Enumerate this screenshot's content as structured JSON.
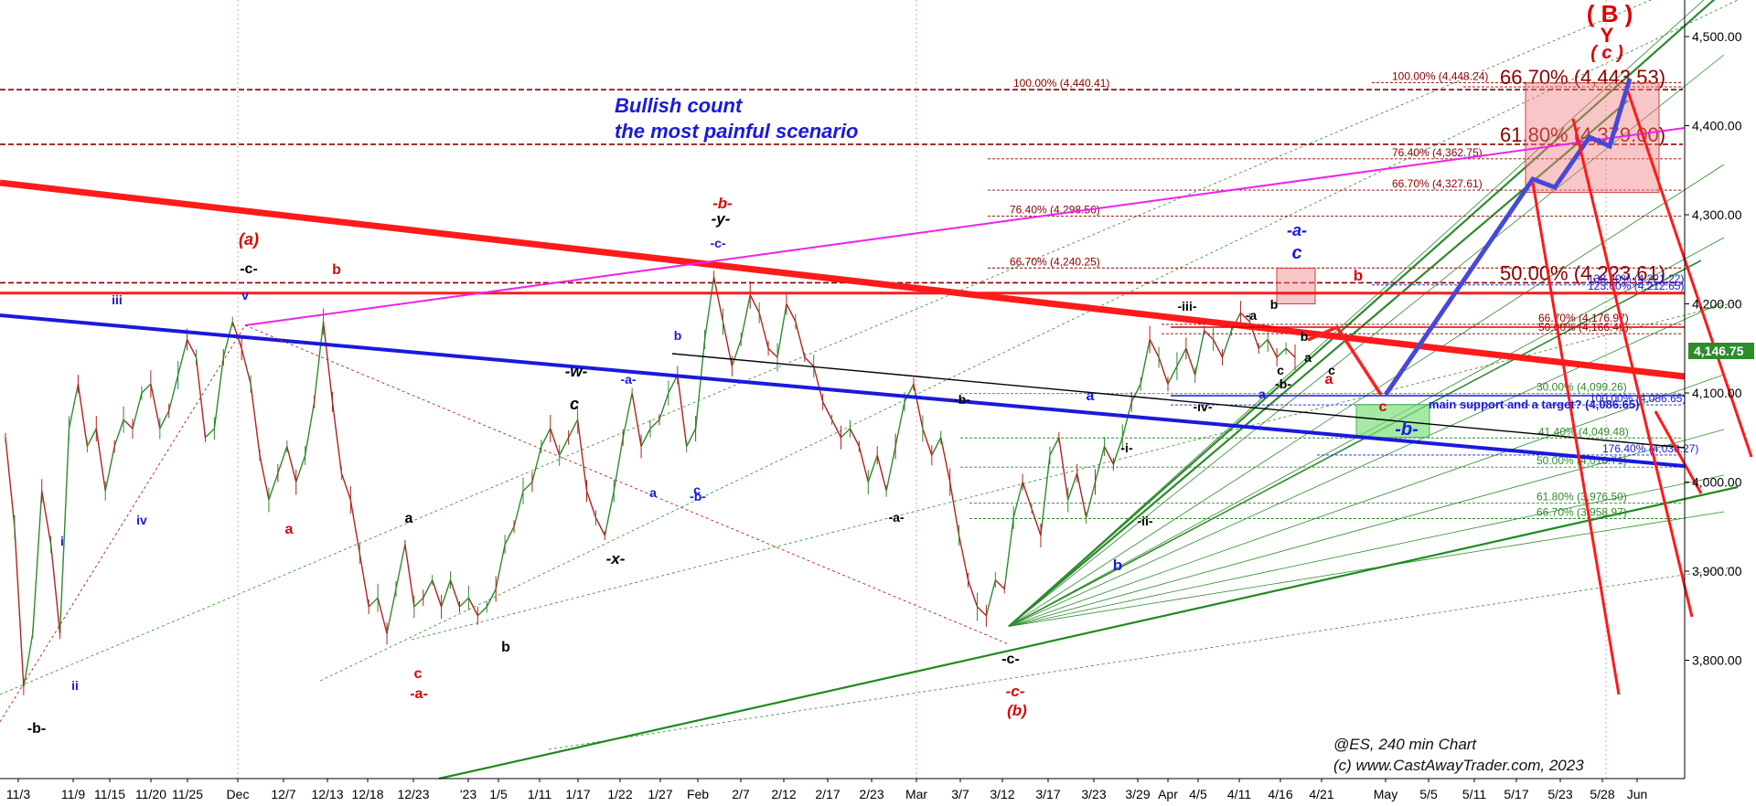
{
  "chart_data": {
    "type": "candlestick",
    "title": "Bullish count",
    "subtitle": "the most painful scenario",
    "symbol_label": "@ES, 240 min Chart",
    "copyright": "(c) www.CastAwayTrader.com, 2023",
    "last_price_label": "4,146.75",
    "last_price": 4146.75,
    "ylim": [
      3710,
      4560
    ],
    "y_ticks": [
      {
        "value": 4500,
        "label": "4,500.00"
      },
      {
        "value": 4400,
        "label": "4,400.00"
      },
      {
        "value": 4300,
        "label": "4,300.00"
      },
      {
        "value": 4200,
        "label": "4,200.00"
      },
      {
        "value": 4100,
        "label": "4,100.00"
      },
      {
        "value": 4000,
        "label": "4,000.00"
      },
      {
        "value": 3900,
        "label": "3,900.00"
      },
      {
        "value": 3800,
        "label": "3,800.00"
      }
    ],
    "x_ticks": [
      "11/3",
      "11/9",
      "11/15",
      "11/20",
      "11/25",
      "Dec",
      "12/7",
      "12/13",
      "12/18",
      "12/23",
      "'23",
      "1/5",
      "1/11",
      "1/17",
      "1/22",
      "1/27",
      "Feb",
      "2/7",
      "2/12",
      "2/17",
      "2/23",
      "Mar",
      "3/7",
      "3/12",
      "3/17",
      "3/23",
      "3/29",
      "Apr",
      "4/5",
      "4/11",
      "4/16",
      "4/21",
      "May",
      "5/5",
      "5/11",
      "5/17",
      "5/23",
      "5/28",
      "Jun"
    ],
    "price_path": [
      [
        0,
        4050
      ],
      [
        1,
        3950
      ],
      [
        2,
        3770
      ],
      [
        3,
        3830
      ],
      [
        4,
        3990
      ],
      [
        5,
        3930
      ],
      [
        6,
        3830
      ],
      [
        7,
        4060
      ],
      [
        8,
        4110
      ],
      [
        9,
        4040
      ],
      [
        10,
        4060
      ],
      [
        11,
        3990
      ],
      [
        12,
        4040
      ],
      [
        13,
        4070
      ],
      [
        14,
        4060
      ],
      [
        15,
        4100
      ],
      [
        16,
        4110
      ],
      [
        17,
        4060
      ],
      [
        18,
        4080
      ],
      [
        19,
        4120
      ],
      [
        20,
        4160
      ],
      [
        21,
        4140
      ],
      [
        22,
        4050
      ],
      [
        23,
        4060
      ],
      [
        24,
        4140
      ],
      [
        25,
        4180
      ],
      [
        26,
        4150
      ],
      [
        27,
        4110
      ],
      [
        28,
        4030
      ],
      [
        29,
        3980
      ],
      [
        30,
        4010
      ],
      [
        31,
        4040
      ],
      [
        32,
        4000
      ],
      [
        33,
        4030
      ],
      [
        34,
        4090
      ],
      [
        35,
        4180
      ],
      [
        36,
        4090
      ],
      [
        37,
        4010
      ],
      [
        38,
        3980
      ],
      [
        39,
        3920
      ],
      [
        40,
        3860
      ],
      [
        41,
        3870
      ],
      [
        42,
        3830
      ],
      [
        43,
        3880
      ],
      [
        44,
        3930
      ],
      [
        45,
        3860
      ],
      [
        46,
        3870
      ],
      [
        47,
        3890
      ],
      [
        48,
        3860
      ],
      [
        49,
        3890
      ],
      [
        50,
        3860
      ],
      [
        51,
        3870
      ],
      [
        52,
        3850
      ],
      [
        53,
        3860
      ],
      [
        54,
        3880
      ],
      [
        55,
        3930
      ],
      [
        56,
        3950
      ],
      [
        57,
        3990
      ],
      [
        58,
        4000
      ],
      [
        59,
        4040
      ],
      [
        60,
        4060
      ],
      [
        61,
        4030
      ],
      [
        62,
        4050
      ],
      [
        63,
        4070
      ],
      [
        64,
        3990
      ],
      [
        65,
        3960
      ],
      [
        66,
        3940
      ],
      [
        67,
        3990
      ],
      [
        68,
        4050
      ],
      [
        69,
        4100
      ],
      [
        70,
        4040
      ],
      [
        71,
        4060
      ],
      [
        72,
        4070
      ],
      [
        73,
        4100
      ],
      [
        74,
        4120
      ],
      [
        75,
        4040
      ],
      [
        76,
        4060
      ],
      [
        77,
        4160
      ],
      [
        78,
        4230
      ],
      [
        79,
        4180
      ],
      [
        80,
        4130
      ],
      [
        81,
        4160
      ],
      [
        82,
        4210
      ],
      [
        83,
        4190
      ],
      [
        84,
        4150
      ],
      [
        85,
        4140
      ],
      [
        86,
        4200
      ],
      [
        87,
        4180
      ],
      [
        88,
        4140
      ],
      [
        89,
        4130
      ],
      [
        90,
        4090
      ],
      [
        91,
        4070
      ],
      [
        92,
        4050
      ],
      [
        93,
        4060
      ],
      [
        94,
        4040
      ],
      [
        95,
        4000
      ],
      [
        96,
        4030
      ],
      [
        97,
        3990
      ],
      [
        98,
        4040
      ],
      [
        99,
        4090
      ],
      [
        100,
        4110
      ],
      [
        101,
        4060
      ],
      [
        102,
        4030
      ],
      [
        103,
        4050
      ],
      [
        104,
        4000
      ],
      [
        105,
        3940
      ],
      [
        106,
        3890
      ],
      [
        107,
        3860
      ],
      [
        108,
        3850
      ],
      [
        109,
        3890
      ],
      [
        110,
        3880
      ],
      [
        111,
        3960
      ],
      [
        112,
        4000
      ],
      [
        113,
        3970
      ],
      [
        114,
        3940
      ],
      [
        115,
        4030
      ],
      [
        116,
        4050
      ],
      [
        117,
        3980
      ],
      [
        118,
        4010
      ],
      [
        119,
        3960
      ],
      [
        120,
        4000
      ],
      [
        121,
        4040
      ],
      [
        122,
        4020
      ],
      [
        123,
        4050
      ],
      [
        124,
        4090
      ],
      [
        125,
        4110
      ],
      [
        126,
        4160
      ],
      [
        127,
        4140
      ],
      [
        128,
        4110
      ],
      [
        129,
        4130
      ],
      [
        130,
        4150
      ],
      [
        131,
        4120
      ],
      [
        132,
        4170
      ],
      [
        133,
        4160
      ],
      [
        134,
        4140
      ],
      [
        135,
        4170
      ],
      [
        136,
        4190
      ],
      [
        137,
        4180
      ],
      [
        138,
        4150
      ],
      [
        139,
        4160
      ],
      [
        140,
        4140
      ],
      [
        141,
        4150
      ],
      [
        142,
        4140
      ]
    ],
    "fib_levels": [
      {
        "label": "100.00% (4,440.41)",
        "value": 4440.41,
        "color": "#8b0000"
      },
      {
        "label": "100.00% (4,448.24)",
        "value": 4448.24,
        "color": "#8b0000"
      },
      {
        "label": "66.70% (4,443.53)",
        "value": 4443.53,
        "color": "#8b0000"
      },
      {
        "label": "61.80% (4,379.00)",
        "value": 4379.0,
        "color": "#8b0000"
      },
      {
        "label": "76.40% (4,362.75)",
        "value": 4362.75,
        "color": "#8b0000"
      },
      {
        "label": "66.70% (4,327.61)",
        "value": 4327.61,
        "color": "#8b0000"
      },
      {
        "label": "76.40% (4,298.56)",
        "value": 4298.56,
        "color": "#8b0000"
      },
      {
        "label": "66.70% (4,240.25)",
        "value": 4240.25,
        "color": "#8b0000"
      },
      {
        "label": "50.00% (4,223.61)",
        "value": 4223.61,
        "color": "#8b0000"
      },
      {
        "label": "138.20% (4,221.22)",
        "value": 4221.22,
        "color": "#1a1adc"
      },
      {
        "label": "123.60% (4,212.65)",
        "value": 4212.65,
        "color": "#1a1adc"
      },
      {
        "label": "66.70% (4,176.97)",
        "value": 4176.97,
        "color": "#8b0000"
      },
      {
        "label": "50.00% (4,166.46)",
        "value": 4166.46,
        "color": "#8b0000"
      },
      {
        "label": "30.00% (4,099.26)",
        "value": 4099.26,
        "color": "#2e8b2e"
      },
      {
        "label": "100.00% (4,086.65)",
        "value": 4086.65,
        "color": "#1a1adc"
      },
      {
        "label": "41.40% (4,049.48)",
        "value": 4049.48,
        "color": "#2e8b2e"
      },
      {
        "label": "176.40% (4,030.27)",
        "value": 4030.27,
        "color": "#1a1adc"
      },
      {
        "label": "50.00% (4,016.71)",
        "value": 4016.71,
        "color": "#2e8b2e"
      },
      {
        "label": "61.80% (3,976.50)",
        "value": 3976.5,
        "color": "#2e8b2e"
      },
      {
        "label": "66.70% (3,958.97)",
        "value": 3958.97,
        "color": "#2e8b2e"
      }
    ],
    "support_label": "main support and a target? (4,086.65)",
    "wave_labels": [
      {
        "text": "(a)",
        "color": "#e00000"
      },
      {
        "text": "-c-",
        "color": "#000000"
      },
      {
        "text": "v",
        "color": "#1a1adc"
      },
      {
        "text": "b",
        "color": "#e00000"
      },
      {
        "text": "iii",
        "color": "#1a1adc"
      },
      {
        "text": "iv",
        "color": "#1a1adc"
      },
      {
        "text": "i",
        "color": "#1a1adc"
      },
      {
        "text": "ii",
        "color": "#1a1adc"
      },
      {
        "text": "-b-",
        "color": "#000000"
      },
      {
        "text": "a",
        "color": "#e00000"
      },
      {
        "text": "a",
        "color": "#000000"
      },
      {
        "text": "c",
        "color": "#e00000"
      },
      {
        "text": "-a-",
        "color": "#e00000"
      },
      {
        "text": "b",
        "color": "#000000"
      },
      {
        "text": "-w-",
        "color": "#000000"
      },
      {
        "text": "c",
        "color": "#000000"
      },
      {
        "text": "-x-",
        "color": "#000000"
      },
      {
        "text": "-a-",
        "color": "#1a1adc"
      },
      {
        "text": "a",
        "color": "#1a1adc"
      },
      {
        "text": "b",
        "color": "#1a1adc"
      },
      {
        "text": "c",
        "color": "#1a1adc"
      },
      {
        "text": "-b-",
        "color": "#1a1adc"
      },
      {
        "text": "-b-",
        "color": "#e00000"
      },
      {
        "text": "-y-",
        "color": "#000000"
      },
      {
        "text": "-c-",
        "color": "#1a1adc"
      },
      {
        "text": "-b-",
        "color": "#000000"
      },
      {
        "text": "-a-",
        "color": "#000000"
      },
      {
        "text": "-c-",
        "color": "#000000"
      },
      {
        "text": "-c-",
        "color": "#e00000"
      },
      {
        "text": "(b)",
        "color": "#e00000"
      },
      {
        "text": "a",
        "color": "#1a1adc"
      },
      {
        "text": "b",
        "color": "#1a1adc"
      },
      {
        "text": "-i-",
        "color": "#000000"
      },
      {
        "text": "-ii-",
        "color": "#000000"
      },
      {
        "text": "-iii-",
        "color": "#000000"
      },
      {
        "text": "-iv-",
        "color": "#000000"
      },
      {
        "text": "-a",
        "color": "#000000"
      },
      {
        "text": "b",
        "color": "#000000"
      },
      {
        "text": "c",
        "color": "#000000"
      },
      {
        "text": "-b-",
        "color": "#000000"
      },
      {
        "text": "a",
        "color": "#000000"
      },
      {
        "text": "b",
        "color": "#000000"
      },
      {
        "text": "c",
        "color": "#000000"
      },
      {
        "text": "a",
        "color": "#e00000"
      },
      {
        "text": "b",
        "color": "#e00000"
      },
      {
        "text": "c",
        "color": "#e00000"
      },
      {
        "text": "a",
        "color": "#1a1adc"
      },
      {
        "text": "-a-",
        "color": "#1a1adc"
      },
      {
        "text": "c",
        "color": "#1a1adc"
      },
      {
        "text": "-b-",
        "color": "#1a1adc"
      },
      {
        "text": "( B )",
        "color": "#e00000"
      },
      {
        "text": "Y",
        "color": "#e00000"
      },
      {
        "text": "( c )",
        "color": "#e00000"
      }
    ],
    "colors": {
      "up_candle": "#2e8b2e",
      "down_candle": "#b22222",
      "red_trend": "#ff1a1a",
      "blue_trend": "#1a1adc",
      "magenta_trend": "#ee22ee",
      "green_trend": "#1e8c1e",
      "last_price_bg": "#2e8b2e"
    }
  }
}
